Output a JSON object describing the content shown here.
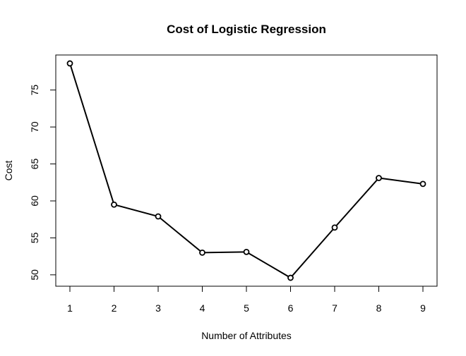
{
  "chart_data": {
    "type": "line",
    "title": "Cost of Logistic Regression",
    "xlabel": "Number of Attributes",
    "ylabel": "Cost",
    "x": [
      1,
      2,
      3,
      4,
      5,
      6,
      7,
      8,
      9
    ],
    "y": [
      78.6,
      59.5,
      57.9,
      53.0,
      53.1,
      49.6,
      56.4,
      63.1,
      62.3
    ],
    "x_ticks": [
      "1",
      "2",
      "3",
      "4",
      "5",
      "6",
      "7",
      "8",
      "9"
    ],
    "y_ticks": [
      "50",
      "55",
      "60",
      "65",
      "70",
      "75"
    ],
    "xlim": [
      0.68,
      9.32
    ],
    "ylim": [
      48.46,
      79.74
    ],
    "line_color": "#000000",
    "marker": "open-circle",
    "grid": false
  }
}
